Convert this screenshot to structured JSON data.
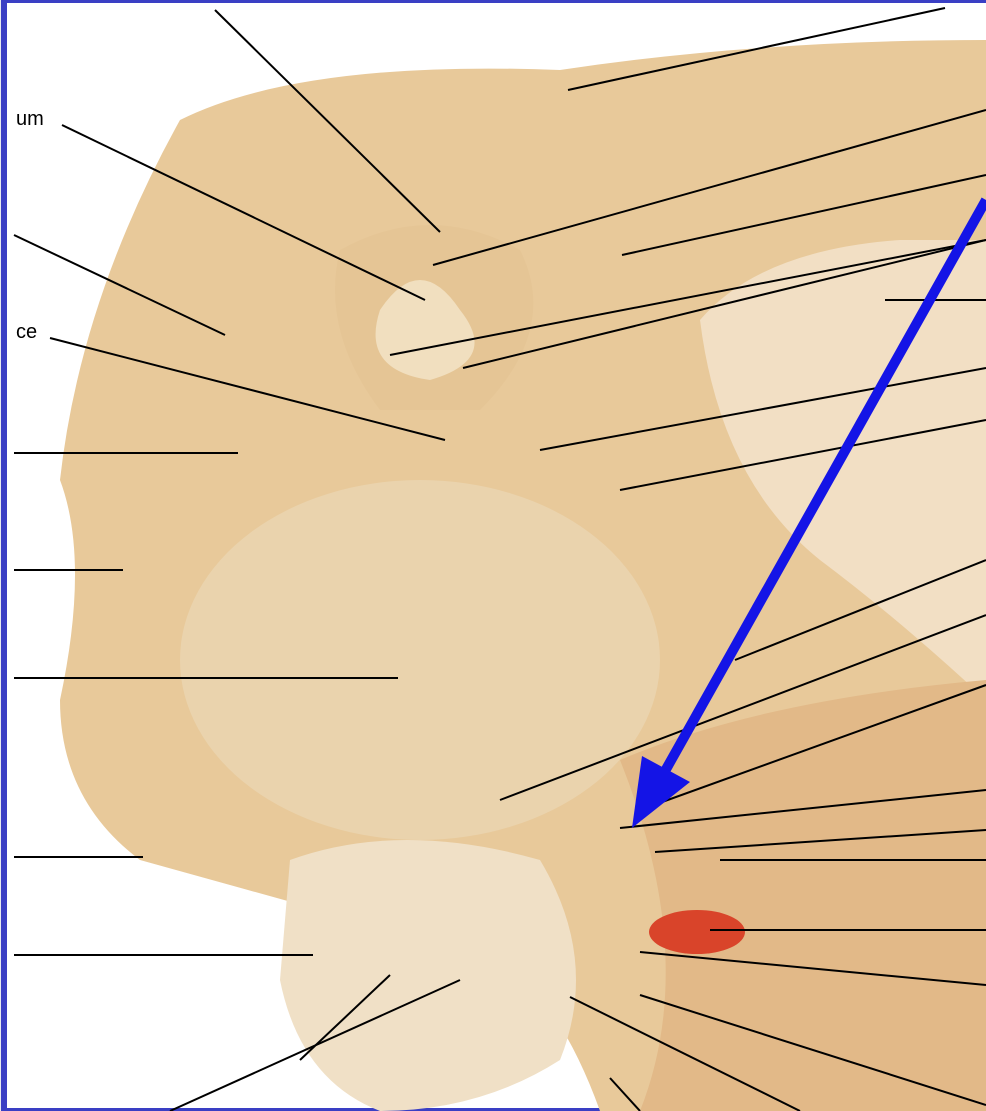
{
  "labels": [
    {
      "text": "um"
    },
    {
      "text": "ce"
    }
  ]
}
